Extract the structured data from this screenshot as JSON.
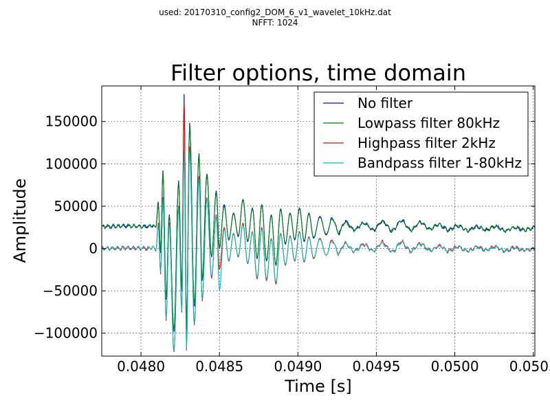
{
  "header": {
    "line1": "used: 20170310_config2_DOM_6_v1_wavelet_10kHz.dat",
    "line2": "NFFT: 1024"
  },
  "chart_data": {
    "type": "line",
    "title": "Filter options, time domain",
    "xlabel": "Time [s]",
    "ylabel": "Amplitude",
    "xlim": [
      0.04775,
      0.05051
    ],
    "ylim": [
      -127000,
      192000
    ],
    "xticks": [
      0.048,
      0.0485,
      0.049,
      0.0495,
      0.05,
      0.0505
    ],
    "xtick_labels": [
      "0.0480",
      "0.0485",
      "0.0490",
      "0.0495",
      "0.0500",
      "0.0505"
    ],
    "yticks": [
      -100000,
      -50000,
      0,
      50000,
      100000,
      150000
    ],
    "ytick_labels": [
      "−100000",
      "−50000",
      "0",
      "50000",
      "100000",
      "150000"
    ],
    "grid": true,
    "legend": "top-right",
    "series": [
      {
        "name": "No filter",
        "color": "#0000ff",
        "offset": 25000,
        "points": [
          [
            0.04775,
            25800
          ],
          [
            0.0479,
            26500
          ],
          [
            0.04805,
            26200
          ],
          [
            0.04808,
            27800
          ],
          [
            0.048095,
            25000
          ],
          [
            0.04811,
            55000
          ],
          [
            0.048125,
            -5000
          ],
          [
            0.04814,
            92000
          ],
          [
            0.04816,
            -60000
          ],
          [
            0.04818,
            40000
          ],
          [
            0.04821,
            -98000
          ],
          [
            0.04824,
            80000
          ],
          [
            0.04826,
            -50000
          ],
          [
            0.048275,
            182000
          ],
          [
            0.04829,
            -95000
          ],
          [
            0.04831,
            148000
          ],
          [
            0.04834,
            -68000
          ],
          [
            0.04837,
            112000
          ],
          [
            0.04839,
            -38000
          ],
          [
            0.04842,
            88000
          ],
          [
            0.04845,
            -10000
          ],
          [
            0.04848,
            68000
          ],
          [
            0.0485,
            0
          ],
          [
            0.04853,
            52000
          ],
          [
            0.04856,
            10000
          ],
          [
            0.04859,
            42000
          ],
          [
            0.04862,
            14000
          ],
          [
            0.04865,
            58000
          ],
          [
            0.04868,
            8000
          ],
          [
            0.04871,
            48000
          ],
          [
            0.04874,
            -12000
          ],
          [
            0.04877,
            52000
          ],
          [
            0.0488,
            -15000
          ],
          [
            0.04883,
            40000
          ],
          [
            0.04886,
            -20000
          ],
          [
            0.04889,
            47000
          ],
          [
            0.04892,
            5000
          ],
          [
            0.04895,
            42000
          ],
          [
            0.04898,
            10000
          ],
          [
            0.04901,
            48000
          ],
          [
            0.04904,
            8000
          ],
          [
            0.04907,
            42000
          ],
          [
            0.0491,
            12000
          ],
          [
            0.04914,
            38000
          ],
          [
            0.04918,
            16000
          ],
          [
            0.04922,
            36000
          ],
          [
            0.04926,
            18000
          ],
          [
            0.0493,
            32000
          ],
          [
            0.04936,
            22000
          ],
          [
            0.04942,
            30000
          ],
          [
            0.04948,
            22000
          ],
          [
            0.04954,
            32000
          ],
          [
            0.0496,
            21000
          ],
          [
            0.04966,
            33000
          ],
          [
            0.04972,
            22000
          ],
          [
            0.04978,
            31000
          ],
          [
            0.04984,
            23000
          ],
          [
            0.0499,
            28000
          ],
          [
            0.04996,
            22000
          ],
          [
            0.05002,
            27000
          ],
          [
            0.05008,
            21000
          ],
          [
            0.05014,
            26000
          ],
          [
            0.0502,
            22000
          ],
          [
            0.05026,
            26000
          ],
          [
            0.05032,
            21000
          ],
          [
            0.05038,
            25000
          ],
          [
            0.05044,
            22000
          ],
          [
            0.05051,
            24500
          ]
        ]
      },
      {
        "name": "Lowpass filter 80kHz",
        "color": "#008000",
        "offset": 25000,
        "points": [
          [
            0.04775,
            25800
          ],
          [
            0.0479,
            26500
          ],
          [
            0.04805,
            26200
          ],
          [
            0.04808,
            27800
          ],
          [
            0.048095,
            25000
          ],
          [
            0.04811,
            52000
          ],
          [
            0.048125,
            -4000
          ],
          [
            0.04814,
            90000
          ],
          [
            0.04816,
            -58000
          ],
          [
            0.04818,
            38000
          ],
          [
            0.04821,
            -96000
          ],
          [
            0.04824,
            78000
          ],
          [
            0.04826,
            -48000
          ],
          [
            0.048275,
            175000
          ],
          [
            0.04829,
            -92000
          ],
          [
            0.04831,
            145000
          ],
          [
            0.04834,
            -65000
          ],
          [
            0.04837,
            110000
          ],
          [
            0.04839,
            -36000
          ],
          [
            0.04842,
            86000
          ],
          [
            0.04845,
            -9000
          ],
          [
            0.04848,
            66000
          ],
          [
            0.0485,
            1000
          ],
          [
            0.04853,
            50000
          ],
          [
            0.04856,
            11000
          ],
          [
            0.04859,
            41000
          ],
          [
            0.04862,
            15000
          ],
          [
            0.04865,
            57000
          ],
          [
            0.04868,
            9000
          ],
          [
            0.04871,
            47000
          ],
          [
            0.04874,
            -11000
          ],
          [
            0.04877,
            51000
          ],
          [
            0.0488,
            -14000
          ],
          [
            0.04883,
            39000
          ],
          [
            0.04886,
            -19000
          ],
          [
            0.04889,
            46000
          ],
          [
            0.04892,
            6000
          ],
          [
            0.04895,
            41000
          ],
          [
            0.04898,
            11000
          ],
          [
            0.04901,
            47000
          ],
          [
            0.04904,
            9000
          ],
          [
            0.04907,
            41000
          ],
          [
            0.0491,
            13000
          ],
          [
            0.04914,
            37000
          ],
          [
            0.04918,
            17000
          ],
          [
            0.04922,
            35000
          ],
          [
            0.04926,
            19000
          ],
          [
            0.0493,
            31000
          ],
          [
            0.04936,
            22000
          ],
          [
            0.04942,
            30000
          ],
          [
            0.04948,
            22000
          ],
          [
            0.04954,
            32000
          ],
          [
            0.0496,
            21000
          ],
          [
            0.04966,
            33000
          ],
          [
            0.04972,
            22000
          ],
          [
            0.04978,
            31000
          ],
          [
            0.04984,
            23000
          ],
          [
            0.0499,
            28000
          ],
          [
            0.04996,
            22000
          ],
          [
            0.05002,
            27000
          ],
          [
            0.05008,
            21000
          ],
          [
            0.05014,
            26000
          ],
          [
            0.0502,
            22000
          ],
          [
            0.05026,
            26000
          ],
          [
            0.05032,
            21000
          ],
          [
            0.05038,
            25000
          ],
          [
            0.05044,
            22000
          ],
          [
            0.05051,
            24500
          ]
        ]
      },
      {
        "name": "Highpass filter 2kHz",
        "color": "#ff0000",
        "offset": 0,
        "points": [
          [
            0.04775,
            0
          ],
          [
            0.0479,
            500
          ],
          [
            0.04805,
            0
          ],
          [
            0.04808,
            2000
          ],
          [
            0.048095,
            -3000
          ],
          [
            0.04811,
            30000
          ],
          [
            0.048125,
            -30000
          ],
          [
            0.04814,
            60000
          ],
          [
            0.04816,
            -85000
          ],
          [
            0.04818,
            30000
          ],
          [
            0.04821,
            -122000
          ],
          [
            0.04824,
            50000
          ],
          [
            0.04826,
            -75000
          ],
          [
            0.048275,
            170000
          ],
          [
            0.04829,
            -120000
          ],
          [
            0.04831,
            120000
          ],
          [
            0.04834,
            -90000
          ],
          [
            0.04837,
            85000
          ],
          [
            0.04839,
            -62000
          ],
          [
            0.04842,
            60000
          ],
          [
            0.04845,
            -35000
          ],
          [
            0.04848,
            40000
          ],
          [
            0.0485,
            -25000
          ],
          [
            0.04853,
            25000
          ],
          [
            0.04856,
            -15000
          ],
          [
            0.04859,
            18000
          ],
          [
            0.04862,
            -10000
          ],
          [
            0.04865,
            30000
          ],
          [
            0.04868,
            -18000
          ],
          [
            0.04871,
            20000
          ],
          [
            0.04874,
            -36000
          ],
          [
            0.04877,
            25000
          ],
          [
            0.0488,
            -38000
          ],
          [
            0.04883,
            12000
          ],
          [
            0.04886,
            -42000
          ],
          [
            0.04889,
            18000
          ],
          [
            0.04892,
            -20000
          ],
          [
            0.04895,
            15000
          ],
          [
            0.04898,
            -15000
          ],
          [
            0.04901,
            20000
          ],
          [
            0.04904,
            -16000
          ],
          [
            0.04907,
            14000
          ],
          [
            0.0491,
            -12000
          ],
          [
            0.04914,
            12000
          ],
          [
            0.04918,
            -8000
          ],
          [
            0.04922,
            10000
          ],
          [
            0.04926,
            -6000
          ],
          [
            0.0493,
            6000
          ],
          [
            0.04936,
            -3000
          ],
          [
            0.04942,
            5000
          ],
          [
            0.04948,
            -3000
          ],
          [
            0.04954,
            7000
          ],
          [
            0.0496,
            -4000
          ],
          [
            0.04966,
            8000
          ],
          [
            0.04972,
            -3000
          ],
          [
            0.04978,
            6000
          ],
          [
            0.04984,
            -2000
          ],
          [
            0.0499,
            3000
          ],
          [
            0.04996,
            -3000
          ],
          [
            0.05002,
            2000
          ],
          [
            0.05008,
            -3000
          ],
          [
            0.05014,
            2000
          ],
          [
            0.0502,
            -2000
          ],
          [
            0.05026,
            2000
          ],
          [
            0.05032,
            -3000
          ],
          [
            0.05038,
            1000
          ],
          [
            0.05044,
            -2000
          ],
          [
            0.05051,
            0
          ]
        ]
      },
      {
        "name": "Bandpass filter 1-80kHz",
        "color": "#00bfbf",
        "offset": 0,
        "points": [
          [
            0.04775,
            0
          ],
          [
            0.0479,
            500
          ],
          [
            0.04805,
            0
          ],
          [
            0.04808,
            2000
          ],
          [
            0.048095,
            -3000
          ],
          [
            0.04811,
            28000
          ],
          [
            0.048125,
            -28000
          ],
          [
            0.04814,
            58000
          ],
          [
            0.04816,
            -83000
          ],
          [
            0.04818,
            28000
          ],
          [
            0.04821,
            -120000
          ],
          [
            0.04824,
            48000
          ],
          [
            0.04826,
            -73000
          ],
          [
            0.048275,
            115000
          ],
          [
            0.04829,
            -118000
          ],
          [
            0.04831,
            115000
          ],
          [
            0.04834,
            -88000
          ],
          [
            0.04837,
            82000
          ],
          [
            0.04839,
            -60000
          ],
          [
            0.04842,
            58000
          ],
          [
            0.04845,
            -33000
          ],
          [
            0.04848,
            38000
          ],
          [
            0.0485,
            -50000
          ],
          [
            0.04853,
            23000
          ],
          [
            0.04856,
            -14000
          ],
          [
            0.04859,
            17000
          ],
          [
            0.04862,
            -9000
          ],
          [
            0.04865,
            28000
          ],
          [
            0.04868,
            -17000
          ],
          [
            0.04871,
            19000
          ],
          [
            0.04874,
            -34000
          ],
          [
            0.04877,
            23000
          ],
          [
            0.0488,
            -36000
          ],
          [
            0.04883,
            11000
          ],
          [
            0.04886,
            -40000
          ],
          [
            0.04889,
            17000
          ],
          [
            0.04892,
            -19000
          ],
          [
            0.04895,
            14000
          ],
          [
            0.04898,
            -14000
          ],
          [
            0.04901,
            19000
          ],
          [
            0.04904,
            -15000
          ],
          [
            0.04907,
            13000
          ],
          [
            0.0491,
            -11000
          ],
          [
            0.04914,
            11000
          ],
          [
            0.04918,
            -8000
          ],
          [
            0.04922,
            9000
          ],
          [
            0.04926,
            -6000
          ],
          [
            0.0493,
            6000
          ],
          [
            0.04936,
            -3000
          ],
          [
            0.04942,
            5000
          ],
          [
            0.04948,
            -3000
          ],
          [
            0.04954,
            6000
          ],
          [
            0.0496,
            -4000
          ],
          [
            0.04966,
            7000
          ],
          [
            0.04972,
            -3000
          ],
          [
            0.04978,
            5000
          ],
          [
            0.04984,
            -2000
          ],
          [
            0.0499,
            3000
          ],
          [
            0.04996,
            -3000
          ],
          [
            0.05002,
            2000
          ],
          [
            0.05008,
            -3000
          ],
          [
            0.05014,
            2000
          ],
          [
            0.0502,
            -2000
          ],
          [
            0.05026,
            2000
          ],
          [
            0.05032,
            -3000
          ],
          [
            0.05038,
            1000
          ],
          [
            0.05044,
            -2000
          ],
          [
            0.05051,
            0
          ]
        ]
      }
    ]
  }
}
